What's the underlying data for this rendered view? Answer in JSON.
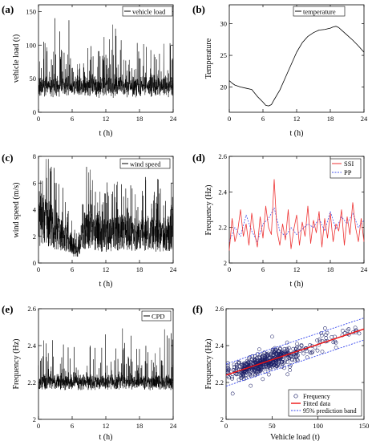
{
  "figure": {
    "colors": {
      "black": "#000000",
      "ssi_line": "#ee3333",
      "pp_line": "#4455ee",
      "fit_line": "#ee1111",
      "band_line": "#3344ee",
      "marker": "#1b1f66"
    }
  },
  "chart_data": [
    {
      "type": "line",
      "panel": "(a)",
      "xlabel": "t (h)",
      "ylabel": "vehicle load (t)",
      "xlim": [
        0,
        24
      ],
      "ylim": [
        0,
        160
      ],
      "xticks": [
        0,
        6,
        12,
        18,
        24
      ],
      "yticks": [
        0,
        50,
        100,
        150
      ],
      "legend": "top-right",
      "grid": false,
      "series": [
        {
          "name": "vehicle load",
          "style": "dense-noise",
          "base": 38,
          "spread": 10,
          "spike_max": 140,
          "n": 1200
        }
      ]
    },
    {
      "type": "line",
      "panel": "(b)",
      "xlabel": "t (h)",
      "ylabel": "Temperature",
      "xlim": [
        0,
        24
      ],
      "ylim": [
        16,
        33
      ],
      "xticks": [
        0,
        6,
        12,
        18,
        24
      ],
      "yticks": [
        20,
        25,
        30
      ],
      "legend": "top-right",
      "grid": false,
      "series": [
        {
          "name": "temperature",
          "x": [
            0,
            0.5,
            1,
            2,
            3,
            4,
            5,
            6,
            6.5,
            7,
            7.5,
            8,
            9,
            10,
            11,
            12,
            13,
            14,
            15,
            16,
            17,
            18,
            18.5,
            19,
            19.5,
            20,
            21,
            22,
            23,
            24
          ],
          "y": [
            21,
            20.6,
            20.3,
            20.0,
            19.8,
            19.6,
            18.5,
            17.6,
            17.1,
            17.0,
            17.2,
            18.0,
            19.5,
            21.5,
            23.5,
            25.5,
            27.0,
            28.0,
            28.6,
            29.0,
            29.1,
            29.3,
            29.5,
            29.6,
            29.4,
            29.0,
            28.2,
            27.4,
            26.5,
            25.5
          ]
        }
      ]
    },
    {
      "type": "line",
      "panel": "(c)",
      "xlabel": "t (h)",
      "ylabel": "wind speed (m/s)",
      "xlim": [
        0,
        24
      ],
      "ylim": [
        0,
        8
      ],
      "xticks": [
        0,
        6,
        12,
        18,
        24
      ],
      "yticks": [
        0,
        2,
        4,
        6,
        8
      ],
      "legend": "top-right",
      "grid": false,
      "series": [
        {
          "name": "wind speed",
          "style": "dense-noise",
          "envelope_x": [
            0,
            1,
            2,
            3,
            4,
            5,
            6,
            7,
            8,
            9,
            10,
            11,
            12,
            13,
            14,
            15,
            16,
            17,
            18,
            19,
            20,
            21,
            22,
            23,
            24
          ],
          "envelope_y": [
            2.8,
            3.2,
            2.9,
            2.5,
            2.1,
            1.8,
            1.3,
            0.9,
            2.4,
            2.6,
            2.3,
            2.1,
            2.0,
            2.1,
            2.3,
            2.2,
            2.3,
            2.2,
            2.0,
            2.2,
            2.1,
            2.0,
            2.1,
            2.2,
            2.4
          ],
          "n": 1200
        }
      ]
    },
    {
      "type": "line",
      "panel": "(d)",
      "xlabel": "t (h)",
      "ylabel": "Frequency (Hz)",
      "xlim": [
        0,
        24
      ],
      "ylim": [
        2.0,
        2.6
      ],
      "xticks": [
        0,
        6,
        12,
        18,
        24
      ],
      "yticks": [
        2.0,
        2.2,
        2.4,
        2.6
      ],
      "legend": "top-right",
      "grid": false,
      "series": [
        {
          "name": "SSI",
          "x": [
            0,
            0.5,
            1,
            1.5,
            2,
            2.5,
            3,
            3.5,
            4,
            4.5,
            5,
            5.5,
            6,
            6.5,
            7,
            7.5,
            8,
            8.5,
            9,
            9.5,
            10,
            10.5,
            11,
            11.5,
            12,
            12.5,
            13,
            13.5,
            14,
            14.5,
            15,
            15.5,
            16,
            16.5,
            17,
            17.5,
            18,
            18.5,
            19,
            19.5,
            20,
            20.5,
            21,
            21.5,
            22,
            22.5,
            23,
            23.5,
            24
          ],
          "y": [
            2.07,
            2.25,
            2.12,
            2.18,
            2.3,
            2.15,
            2.22,
            2.1,
            2.28,
            2.17,
            2.09,
            2.26,
            2.14,
            2.32,
            2.2,
            2.16,
            2.47,
            2.18,
            2.1,
            2.22,
            2.13,
            2.3,
            2.08,
            2.19,
            2.27,
            2.1,
            2.23,
            2.15,
            2.32,
            2.11,
            2.24,
            2.17,
            2.29,
            2.09,
            2.25,
            2.14,
            2.28,
            2.12,
            2.22,
            2.18,
            2.3,
            2.1,
            2.26,
            2.16,
            2.34,
            2.2,
            2.12,
            2.25,
            2.12
          ]
        },
        {
          "name": "PP",
          "x": [
            0,
            1,
            2,
            3,
            4,
            5,
            6,
            7,
            8,
            9,
            10,
            11,
            12,
            13,
            14,
            15,
            16,
            17,
            18,
            19,
            20,
            21,
            22,
            23,
            24
          ],
          "y": [
            2.12,
            2.2,
            2.15,
            2.27,
            2.18,
            2.12,
            2.22,
            2.25,
            2.31,
            2.18,
            2.15,
            2.2,
            2.16,
            2.19,
            2.22,
            2.2,
            2.25,
            2.18,
            2.29,
            2.19,
            2.26,
            2.22,
            2.28,
            2.2,
            2.24
          ]
        }
      ]
    },
    {
      "type": "line",
      "panel": "(e)",
      "xlabel": "t (h)",
      "ylabel": "Frequency (Hz)",
      "xlim": [
        0,
        24
      ],
      "ylim": [
        2.0,
        2.6
      ],
      "xticks": [
        0,
        6,
        12,
        18,
        24
      ],
      "yticks": [
        2.0,
        2.2,
        2.4,
        2.6
      ],
      "legend": "top-right",
      "grid": false,
      "series": [
        {
          "name": "CPD",
          "style": "dense-noise",
          "base": 2.2,
          "spread": 0.03,
          "spike_max": 2.52,
          "n": 1200
        }
      ]
    },
    {
      "type": "scatter",
      "panel": "(f)",
      "xlabel": "Vehicle load (t)",
      "ylabel": "Frequency (Hz)",
      "xlim": [
        0,
        150
      ],
      "ylim": [
        2.0,
        2.6
      ],
      "xticks": [
        0,
        50,
        100,
        150
      ],
      "yticks": [
        2.0,
        2.2,
        2.4,
        2.6
      ],
      "legend": "bottom-right",
      "grid": false,
      "series": [
        {
          "name": "Frequency",
          "style": "scatter-cloud",
          "x_center": 40,
          "x_spread": 18,
          "n": 500
        },
        {
          "name": "Fitted data",
          "x": [
            0,
            150
          ],
          "y": [
            2.24,
            2.49
          ]
        },
        {
          "name": "95% prediction band",
          "x": [
            0,
            150
          ],
          "y_upper": [
            2.3,
            2.55
          ],
          "y_lower": [
            2.18,
            2.43
          ]
        }
      ]
    }
  ],
  "panels_text": {
    "a": {
      "label": "(a)",
      "legend": "vehicle load",
      "xlabel": "t (h)",
      "ylabel": "vehicle load (t)"
    },
    "b": {
      "label": "(b)",
      "legend": "temperature",
      "xlabel": "t (h)",
      "ylabel": "Temperature"
    },
    "c": {
      "label": "(c)",
      "legend": "wind speed",
      "xlabel": "t (h)",
      "ylabel": "wind speed (m/s)"
    },
    "d": {
      "label": "(d)",
      "legend1": "SSI",
      "legend2": "PP",
      "xlabel": "t (h)",
      "ylabel": "Frequency (Hz)"
    },
    "e": {
      "label": "(e)",
      "legend": "CPD",
      "xlabel": "t (h)",
      "ylabel": "Frequency (Hz)"
    },
    "f": {
      "label": "(f)",
      "legend1": "Frequency",
      "legend2": "Fitted data",
      "legend3": "95% prediction band",
      "xlabel": "Vehicle load (t)",
      "ylabel": "Frequency (Hz)"
    }
  }
}
